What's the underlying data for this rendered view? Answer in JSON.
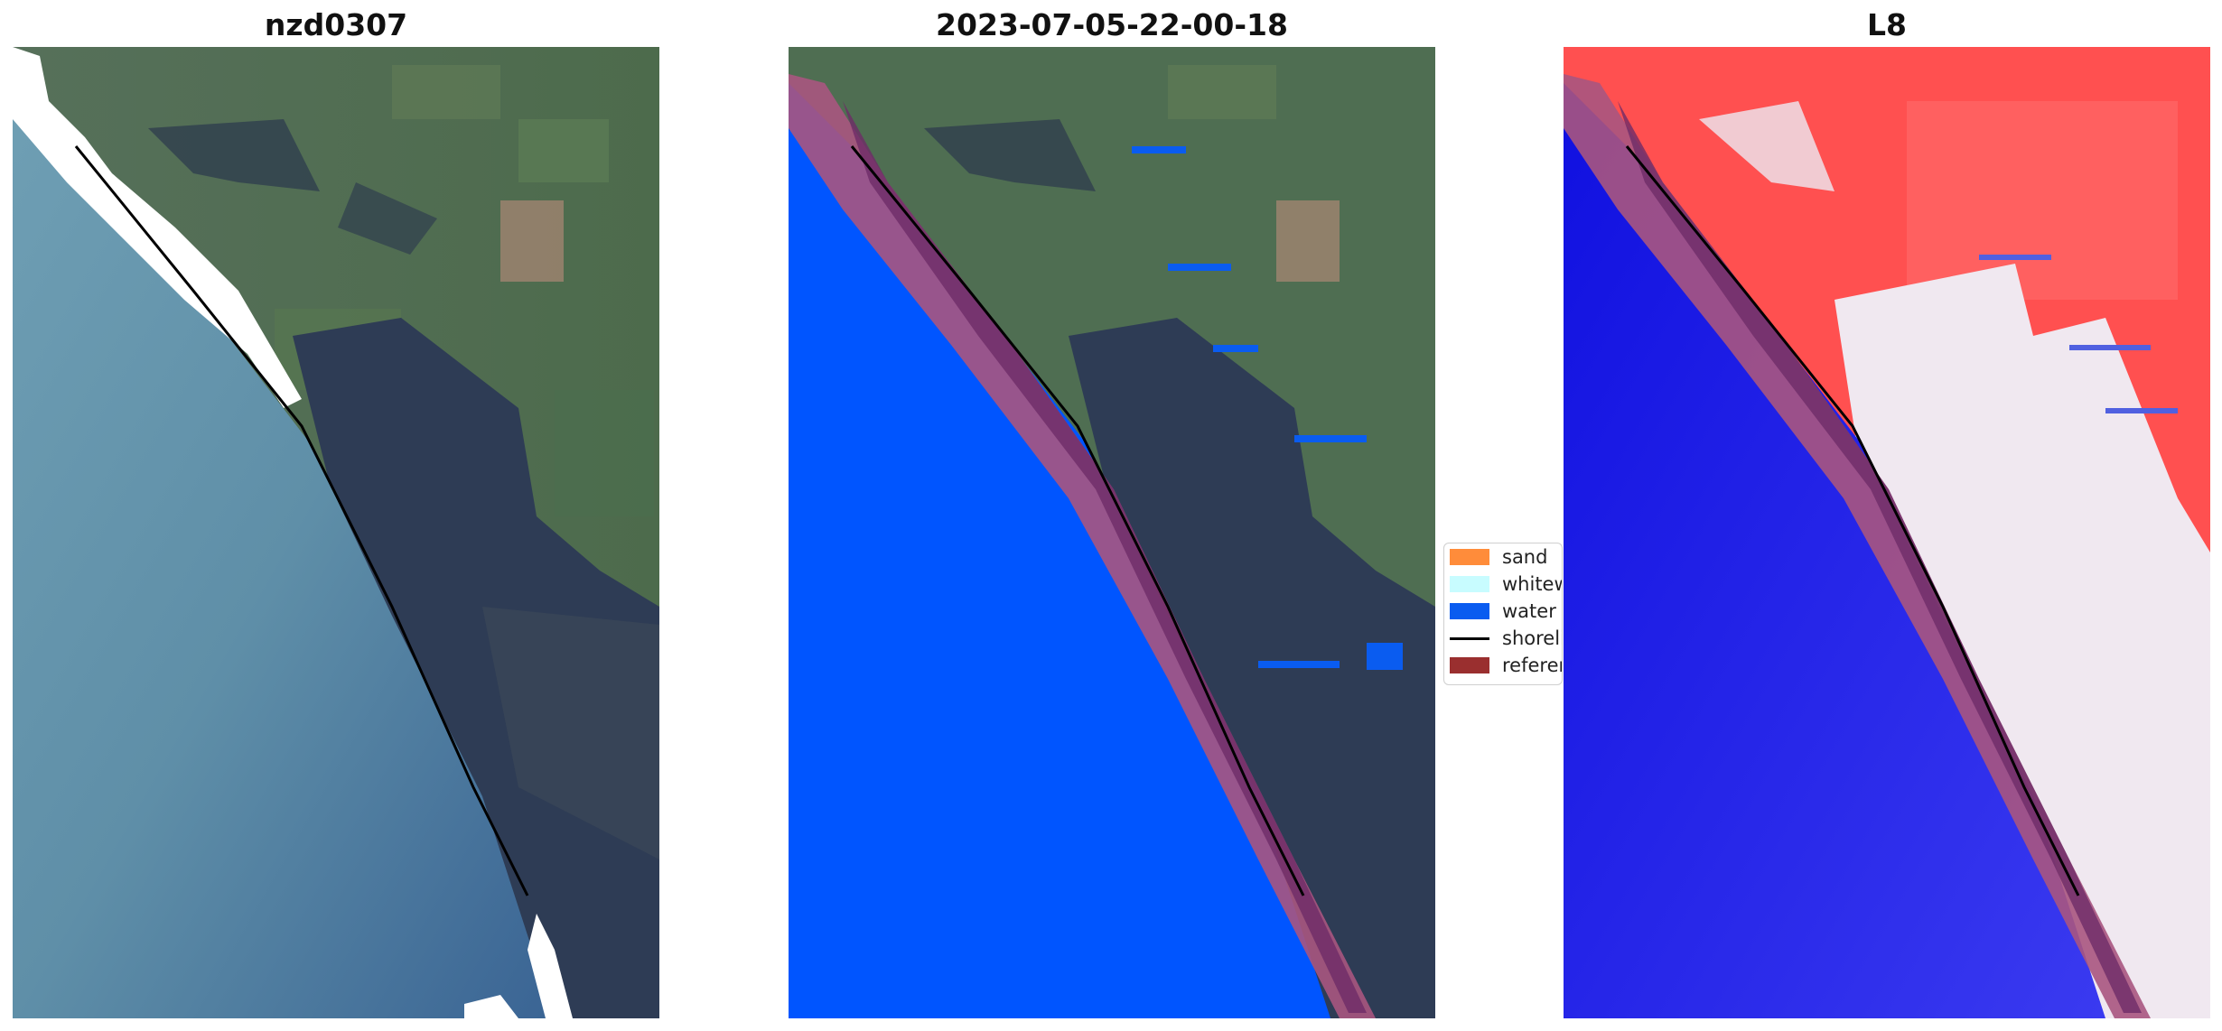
{
  "panels": [
    {
      "title": "nzd0307",
      "kind": "rgb"
    },
    {
      "title": "2023-07-05-22-00-18",
      "kind": "classified"
    },
    {
      "title": "L8",
      "kind": "index"
    }
  ],
  "legend": {
    "items": [
      {
        "label": "sand",
        "color": "#ff8c3a",
        "kind": "patch"
      },
      {
        "label": "whitewater",
        "color": "#c8fcff",
        "kind": "patch"
      },
      {
        "label": "water",
        "color": "#0a5cf0",
        "kind": "patch"
      },
      {
        "label": "shoreline",
        "color": "#000000",
        "kind": "line"
      },
      {
        "label": "reference",
        "color": "#9a2f2f",
        "kind": "patch"
      }
    ]
  },
  "colors": {
    "sea": "#4f7fa0",
    "land": "#4f6e52",
    "forest": "#2b3a52",
    "surf": "#ffffff",
    "classified_water": "#0055ff",
    "reference_buffer": "#a8557f",
    "index_positive": "#ff4040",
    "index_negative": "#1010e0"
  }
}
